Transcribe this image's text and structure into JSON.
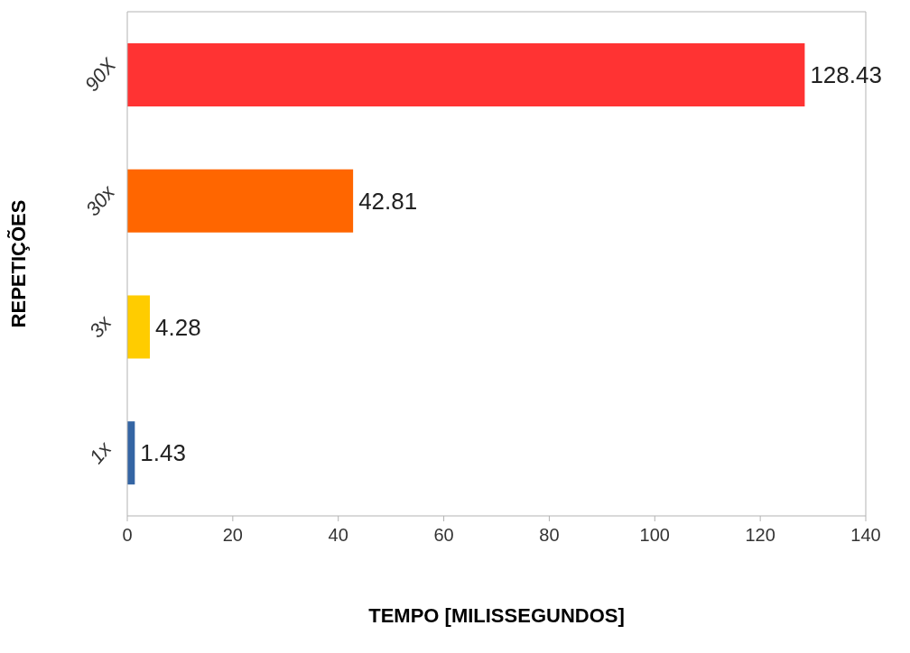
{
  "chart_data": {
    "type": "bar",
    "orientation": "horizontal",
    "xlabel": "TEMPO [MILISSEGUNDOS]",
    "ylabel": "REPETIÇÕES",
    "categories": [
      "90X",
      "30x",
      "3x",
      "1x"
    ],
    "values": [
      128.43,
      42.81,
      4.28,
      1.43
    ],
    "colors": [
      "#ff3333",
      "#ff6600",
      "#ffcc00",
      "#3465a4"
    ],
    "xlim": [
      0,
      140
    ],
    "xticks": [
      0,
      20,
      40,
      60,
      80,
      100,
      120,
      140
    ],
    "data_labels": true,
    "grid": false
  }
}
